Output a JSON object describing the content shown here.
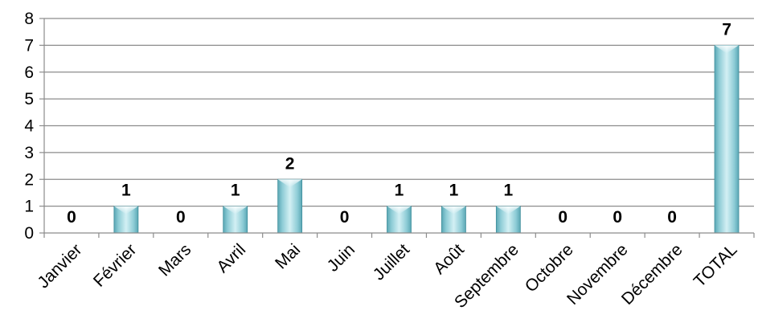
{
  "chart_data": {
    "type": "bar",
    "title": "",
    "xlabel": "",
    "ylabel": "",
    "categories": [
      "Janvier",
      "Février",
      "Mars",
      "Avril",
      "Mai",
      "Juin",
      "Juillet",
      "Août",
      "Septembre",
      "Octobre",
      "Novembre",
      "Décembre",
      "TOTAL"
    ],
    "values": [
      0,
      1,
      0,
      1,
      2,
      0,
      1,
      1,
      1,
      0,
      0,
      0,
      7
    ],
    "ylim": [
      0,
      8
    ],
    "yticks": [
      0,
      1,
      2,
      3,
      4,
      5,
      6,
      7,
      8
    ],
    "grid": true,
    "legend": "none",
    "data_labels": true,
    "colors": {
      "bar_center": "#bfe6ec",
      "bar_edge": "#5aa7b4",
      "bar_outline": "#3f8e9b",
      "grid": "#8c8c8c"
    }
  }
}
